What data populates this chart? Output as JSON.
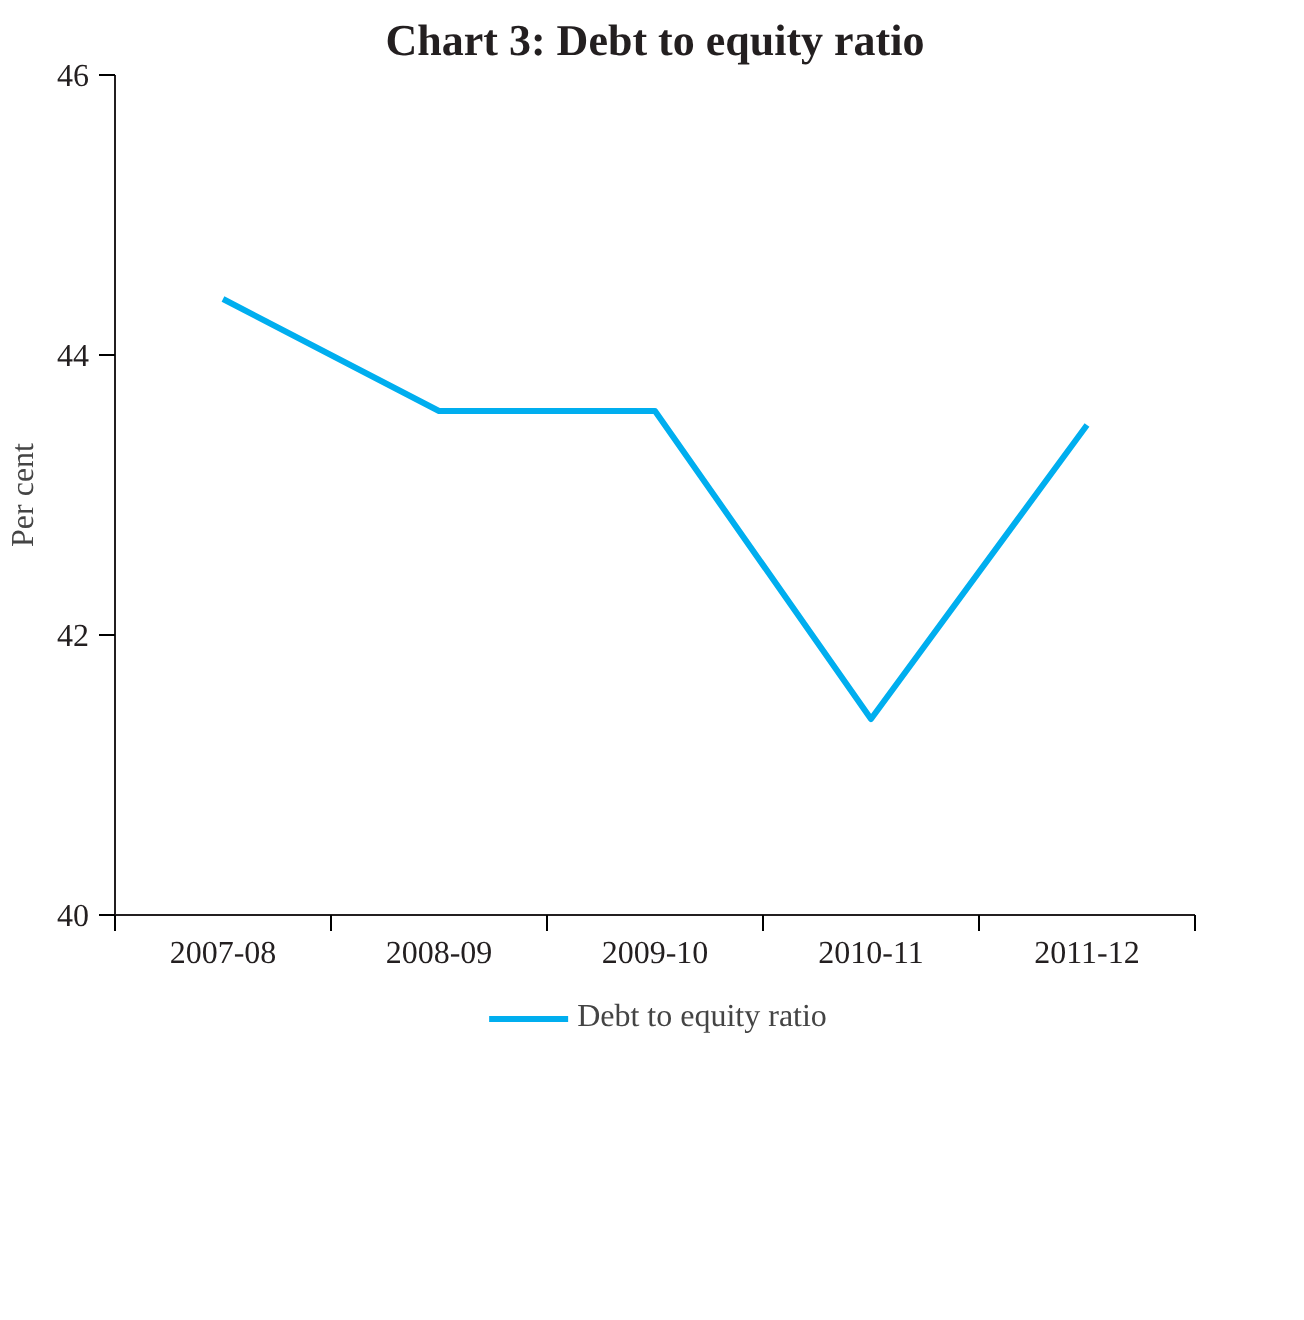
{
  "chart_data": {
    "type": "line",
    "title": "Chart 3: Debt to equity ratio",
    "ylabel": "Per cent",
    "categories": [
      "2007-08",
      "2008-09",
      "2009-10",
      "2010-11",
      "2011-12"
    ],
    "series": [
      {
        "name": "Debt to equity ratio",
        "color": "#00aeef",
        "values": [
          44.4,
          43.6,
          43.6,
          41.4,
          43.5
        ]
      }
    ],
    "ylim": [
      40,
      46
    ],
    "yticks": [
      40,
      42,
      44,
      46
    ],
    "grid": false,
    "legend": "bottom"
  }
}
